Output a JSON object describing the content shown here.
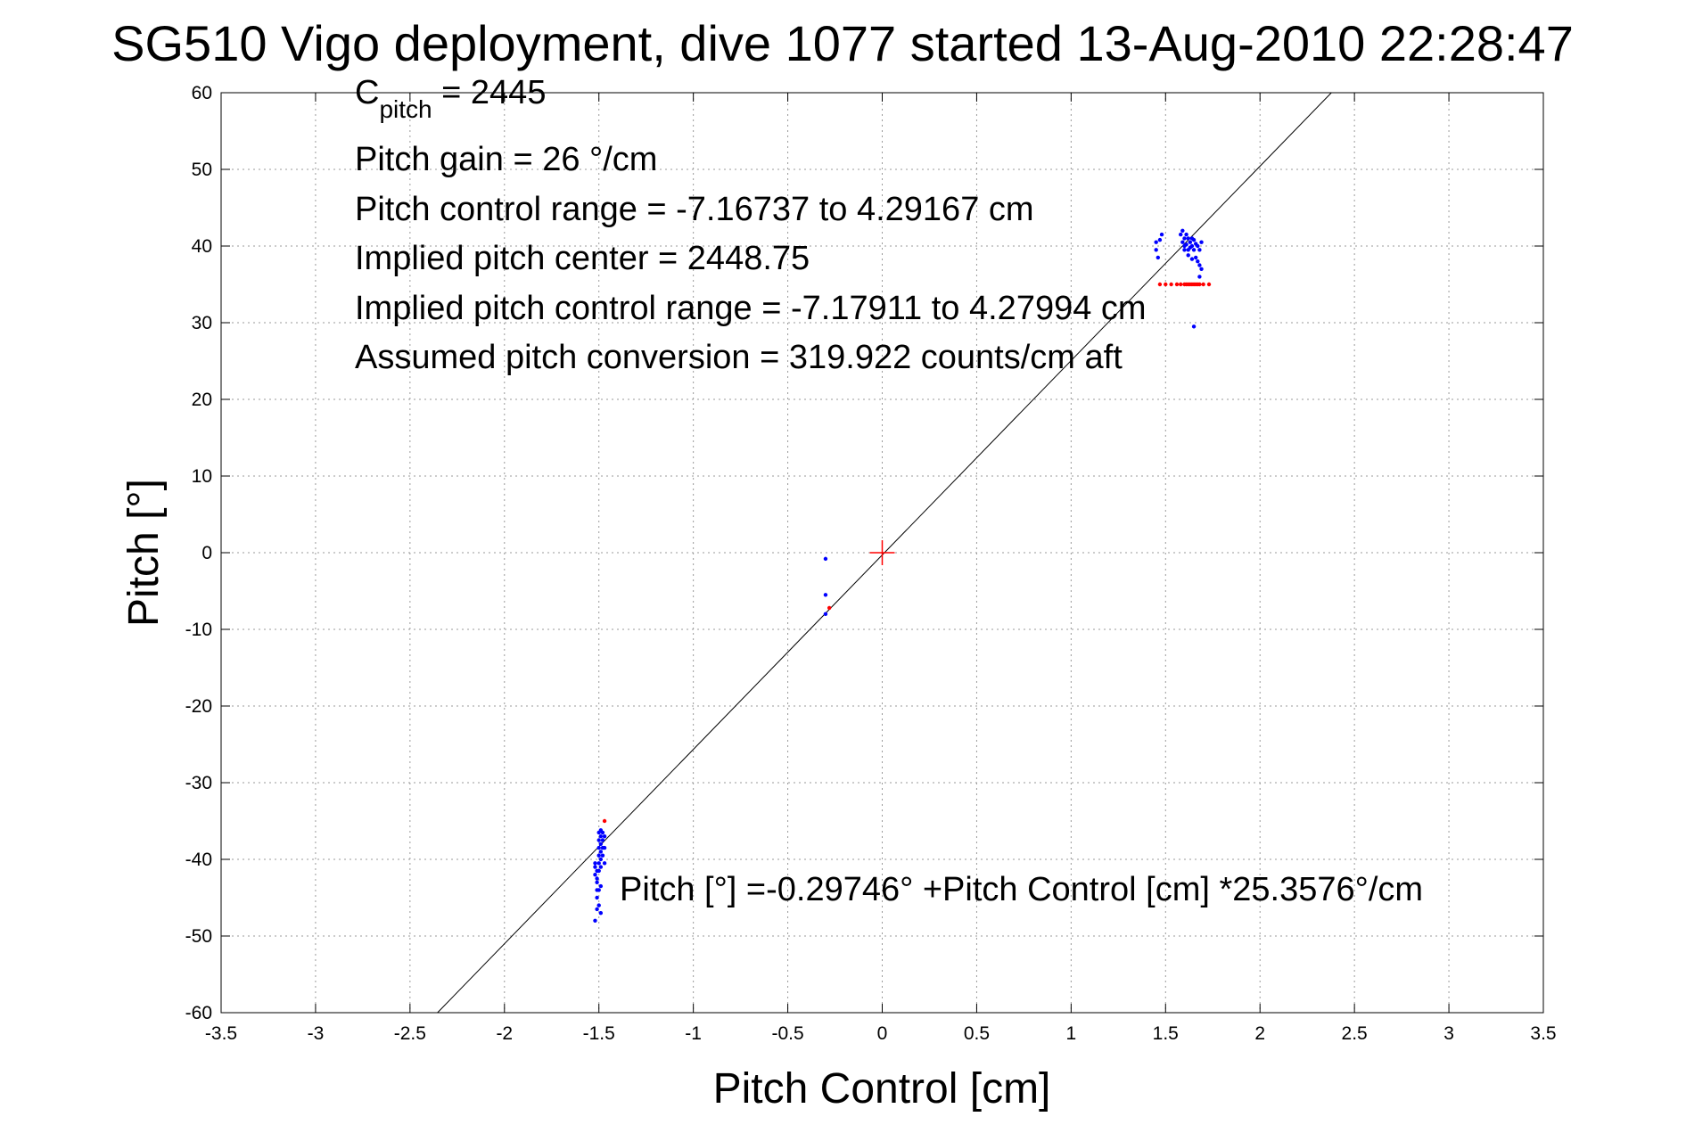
{
  "chart_data": {
    "type": "scatter",
    "title": "SG510 Vigo deployment, dive 1077 started 13-Aug-2010 22:28:47",
    "xlabel": "Pitch Control [cm]",
    "ylabel": "Pitch [°]",
    "xlim": [
      -3.5,
      3.5
    ],
    "ylim": [
      -60,
      60
    ],
    "xticks": [
      -3.5,
      -3,
      -2.5,
      -2,
      -1.5,
      -1,
      -0.5,
      0,
      0.5,
      1,
      1.5,
      2,
      2.5,
      3,
      3.5
    ],
    "yticks": [
      -60,
      -50,
      -40,
      -30,
      -20,
      -10,
      0,
      10,
      20,
      30,
      40,
      50,
      60
    ],
    "xtick_labels": [
      "-3.5",
      "-3",
      "-2.5",
      "-2",
      "-1.5",
      "-1",
      "-0.5",
      "0",
      "0.5",
      "1",
      "1.5",
      "2",
      "2.5",
      "3",
      "3.5"
    ],
    "ytick_labels": [
      "-60",
      "-50",
      "-40",
      "-30",
      "-20",
      "-10",
      "0",
      "10",
      "20",
      "30",
      "40",
      "50",
      "60"
    ],
    "grid": true,
    "annotations": {
      "c_pitch_base": "C",
      "c_pitch_sub": "pitch",
      "c_pitch_value": " = 2445",
      "pitch_gain": "Pitch gain = 26 °/cm",
      "pitch_control_range": "Pitch control range = -7.16737 to 4.29167 cm",
      "implied_center": "Implied pitch center = 2448.75",
      "implied_range": "Implied pitch control range = -7.17911 to 4.27994 cm",
      "assumed_conversion": "Assumed pitch conversion = 319.922 counts/cm aft",
      "fit_equation": "Pitch [°] =-0.29746° +Pitch Control [cm] *25.3576°/cm"
    },
    "fit_line": {
      "intercept": -0.29746,
      "slope": 25.3576,
      "color": "#000000"
    },
    "center_marker": {
      "x": 0,
      "y": 0,
      "color": "#ff0000"
    },
    "series": [
      {
        "color": "#0000ff",
        "points": [
          [
            -1.52,
            -40.5
          ],
          [
            -1.52,
            -41
          ],
          [
            -1.52,
            -42
          ],
          [
            -1.51,
            -43
          ],
          [
            -1.51,
            -44
          ],
          [
            -1.51,
            -45
          ],
          [
            -1.51,
            -46.5
          ],
          [
            -1.52,
            -48
          ],
          [
            -1.51,
            -41.5
          ],
          [
            -1.51,
            -42.5
          ],
          [
            -1.5,
            -36.5
          ],
          [
            -1.5,
            -37.5
          ],
          [
            -1.5,
            -38.5
          ],
          [
            -1.5,
            -39.5
          ],
          [
            -1.5,
            -40.5
          ],
          [
            -1.5,
            -41.5
          ],
          [
            -1.49,
            -36.2
          ],
          [
            -1.49,
            -37
          ],
          [
            -1.49,
            -38
          ],
          [
            -1.49,
            -39
          ],
          [
            -1.49,
            -40
          ],
          [
            -1.49,
            -41
          ],
          [
            -1.48,
            -36.5
          ],
          [
            -1.48,
            -37.5
          ],
          [
            -1.48,
            -38.5
          ],
          [
            -1.48,
            -39.5
          ],
          [
            -1.47,
            -40.5
          ],
          [
            -1.47,
            -37
          ],
          [
            -1.47,
            -38.5
          ],
          [
            -1.5,
            -46
          ],
          [
            -1.49,
            -47
          ],
          [
            -1.5,
            -44
          ],
          [
            -1.49,
            -43.5
          ],
          [
            -0.3,
            -0.8
          ],
          [
            -0.3,
            -5.5
          ],
          [
            -0.3,
            -8
          ],
          [
            1.45,
            40.5
          ],
          [
            1.45,
            39.5
          ],
          [
            1.46,
            38.5
          ],
          [
            1.47,
            40.8
          ],
          [
            1.48,
            41.5
          ],
          [
            1.58,
            41.5
          ],
          [
            1.59,
            42
          ],
          [
            1.59,
            40.5
          ],
          [
            1.6,
            41
          ],
          [
            1.6,
            40
          ],
          [
            1.61,
            41.5
          ],
          [
            1.61,
            40.2
          ],
          [
            1.62,
            39.5
          ],
          [
            1.62,
            41
          ],
          [
            1.63,
            40.5
          ],
          [
            1.63,
            39.8
          ],
          [
            1.64,
            41
          ],
          [
            1.64,
            40
          ],
          [
            1.65,
            39.5
          ],
          [
            1.65,
            40.8
          ],
          [
            1.66,
            40.3
          ],
          [
            1.66,
            38.5
          ],
          [
            1.67,
            40
          ],
          [
            1.67,
            38
          ],
          [
            1.68,
            37.5
          ],
          [
            1.68,
            39.5
          ],
          [
            1.68,
            36
          ],
          [
            1.69,
            37
          ],
          [
            1.69,
            40.5
          ],
          [
            1.62,
            38.8
          ],
          [
            1.64,
            38.3
          ],
          [
            1.6,
            39.5
          ],
          [
            1.65,
            29.5
          ]
        ]
      },
      {
        "color": "#ff0000",
        "points": [
          [
            -1.47,
            -35
          ],
          [
            -0.28,
            -7.2
          ],
          [
            1.47,
            35
          ],
          [
            1.5,
            35
          ],
          [
            1.53,
            35
          ],
          [
            1.56,
            35
          ],
          [
            1.58,
            35
          ],
          [
            1.6,
            35
          ],
          [
            1.61,
            35
          ],
          [
            1.62,
            35
          ],
          [
            1.63,
            35
          ],
          [
            1.64,
            35
          ],
          [
            1.65,
            35
          ],
          [
            1.66,
            35
          ],
          [
            1.67,
            35
          ],
          [
            1.68,
            35
          ],
          [
            1.7,
            35
          ],
          [
            1.73,
            35
          ]
        ]
      }
    ]
  }
}
